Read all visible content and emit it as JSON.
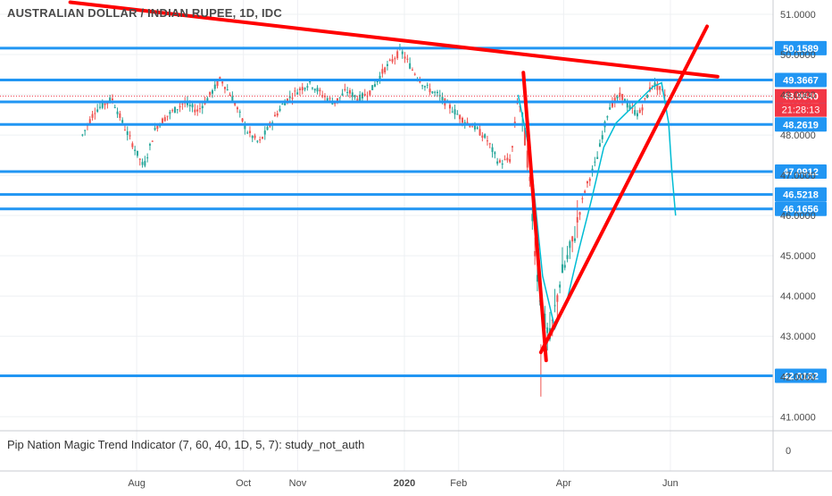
{
  "header": {
    "symbol_title": "AUSTRALIAN DOLLAR / INDIAN RUPEE, 1D, IDC"
  },
  "indicator": {
    "label": "Pip Nation Magic Trend Indicator (7, 60, 40, 1D, 5, 7): study_not_auth"
  },
  "colors": {
    "up": "#26a69a",
    "down": "#ef5350",
    "level": "#2196f3",
    "trend": "#ff0000",
    "magic": "#00bcd4",
    "price_tag": "#f23645",
    "grid": "#eef0f3",
    "axis_text": "#4a4a4a"
  },
  "chart_data": {
    "type": "candlestick",
    "title": "AUSTRALIAN DOLLAR / INDIAN RUPEE, 1D, IDC",
    "x_ticks": [
      "Aug",
      "Oct",
      "Nov",
      "2020",
      "Feb",
      "Apr",
      "Jun"
    ],
    "y_ticks": [
      "51.0000",
      "50.0000",
      "49.0000",
      "48.0000",
      "47.0000",
      "46.0000",
      "45.0000",
      "44.0000",
      "43.0000",
      "42.0000",
      "41.0000"
    ],
    "ylim": [
      40.8,
      51.3
    ],
    "levels": [
      {
        "label": "50.1589",
        "value": 50.1589
      },
      {
        "label": "49.3667",
        "value": 49.3667
      },
      {
        "label": "48.8234",
        "value": 48.8234
      },
      {
        "label": "48.2619",
        "value": 48.2619
      },
      {
        "label": "47.0912",
        "value": 47.0912
      },
      {
        "label": "46.5218",
        "value": 46.5218
      },
      {
        "label": "46.1656",
        "value": 46.1656
      },
      {
        "label": "42.0182",
        "value": 42.0182
      }
    ],
    "last_price": {
      "label": "48.9640",
      "value": 48.964
    },
    "countdown": "21:28:13",
    "candle_path": [
      [
        "2019-07-01",
        48.0
      ],
      [
        "2019-07-08",
        48.6
      ],
      [
        "2019-07-18",
        48.9
      ],
      [
        "2019-07-25",
        48.2
      ],
      [
        "2019-08-05",
        47.2
      ],
      [
        "2019-08-12",
        48.2
      ],
      [
        "2019-08-19",
        48.5
      ],
      [
        "2019-08-28",
        48.8
      ],
      [
        "2019-09-05",
        48.6
      ],
      [
        "2019-09-12",
        49.0
      ],
      [
        "2019-09-18",
        49.4
      ],
      [
        "2019-09-25",
        48.9
      ],
      [
        "2019-10-03",
        48.1
      ],
      [
        "2019-10-10",
        47.8
      ],
      [
        "2019-10-17",
        48.3
      ],
      [
        "2019-10-24",
        48.8
      ],
      [
        "2019-11-01",
        49.1
      ],
      [
        "2019-11-08",
        49.3
      ],
      [
        "2019-11-15",
        49.0
      ],
      [
        "2019-11-22",
        48.8
      ],
      [
        "2019-11-29",
        49.1
      ],
      [
        "2019-12-06",
        48.9
      ],
      [
        "2019-12-13",
        49.1
      ],
      [
        "2019-12-20",
        49.6
      ],
      [
        "2019-12-30",
        50.1
      ],
      [
        "2020-01-06",
        49.6
      ],
      [
        "2020-01-13",
        49.2
      ],
      [
        "2020-01-20",
        49.0
      ],
      [
        "2020-01-27",
        48.7
      ],
      [
        "2020-02-03",
        48.4
      ],
      [
        "2020-02-10",
        48.2
      ],
      [
        "2020-02-17",
        47.9
      ],
      [
        "2020-02-24",
        47.3
      ],
      [
        "2020-03-02",
        47.4
      ],
      [
        "2020-03-06",
        49.0
      ],
      [
        "2020-03-11",
        47.6
      ],
      [
        "2020-03-17",
        44.5
      ],
      [
        "2020-03-20",
        43.5
      ],
      [
        "2020-03-24",
        42.9
      ],
      [
        "2020-03-30",
        44.4
      ],
      [
        "2020-04-06",
        45.3
      ],
      [
        "2020-04-13",
        46.6
      ],
      [
        "2020-04-20",
        47.4
      ],
      [
        "2020-04-27",
        48.7
      ],
      [
        "2020-05-04",
        49.0
      ],
      [
        "2020-05-08",
        48.7
      ],
      [
        "2020-05-14",
        48.5
      ],
      [
        "2020-05-22",
        49.3
      ],
      [
        "2020-05-29",
        49.0
      ]
    ],
    "magic_trend": [
      [
        "2020-03-06",
        49.0
      ],
      [
        "2020-03-13",
        47.5
      ],
      [
        "2020-03-20",
        44.5
      ],
      [
        "2020-03-27",
        43.2
      ],
      [
        "2020-04-03",
        43.9
      ],
      [
        "2020-04-10",
        45.2
      ],
      [
        "2020-04-17",
        46.4
      ],
      [
        "2020-04-24",
        47.7
      ],
      [
        "2020-05-01",
        48.3
      ],
      [
        "2020-05-08",
        48.6
      ],
      [
        "2020-05-15",
        48.9
      ],
      [
        "2020-05-22",
        49.2
      ],
      [
        "2020-05-27",
        49.3
      ],
      [
        "2020-05-31",
        48.3
      ],
      [
        "2020-06-02",
        47.0
      ],
      [
        "2020-06-04",
        46.0
      ]
    ],
    "trend_lines": [
      {
        "from": [
          "2019-06-24",
          51.3
        ],
        "to": [
          "2020-06-28",
          49.45
        ]
      },
      {
        "from": [
          "2020-03-09",
          49.55
        ],
        "to": [
          "2020-03-22",
          42.4
        ]
      },
      {
        "from": [
          "2020-03-19",
          42.6
        ],
        "to": [
          "2020-06-22",
          50.7
        ]
      }
    ],
    "indicator_pane": {
      "y_ticks": [
        "0"
      ],
      "label": "Pip Nation Magic Trend Indicator (7, 60, 40, 1D, 5, 7): study_not_auth"
    },
    "grid": true,
    "legend": "none"
  }
}
